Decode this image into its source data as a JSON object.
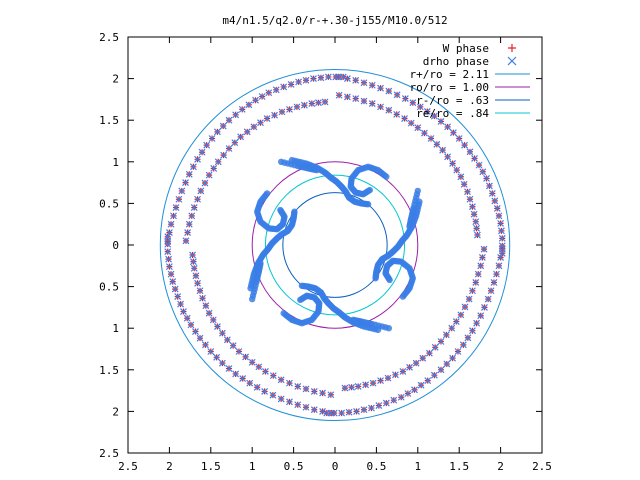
{
  "chart_data": {
    "type": "scatter",
    "title": "m4/n1.5/q2.0/r-+.30-j155/M10.0/512",
    "xlabel": "",
    "ylabel": "",
    "xlim": [
      -2.5,
      2.5
    ],
    "ylim": [
      -2.5,
      2.5
    ],
    "x_ticks": [
      -2.5,
      -2,
      -1.5,
      -1,
      -0.5,
      0,
      0.5,
      1,
      1.5,
      2,
      2.5
    ],
    "y_ticks": [
      2.5,
      2,
      1.5,
      1,
      0.5,
      0,
      -0.5,
      -1,
      -1.5,
      -2,
      -2.5
    ],
    "x_tick_labels": [
      "2.5",
      "2",
      "1.5",
      "1",
      "0.5",
      "0",
      "0.5",
      "1",
      "1.5",
      "2",
      "2.5"
    ],
    "y_tick_labels": [
      "2.5",
      "2",
      "1.5",
      "1",
      "0.5",
      "0",
      "0.5",
      "1",
      "1.5",
      "2",
      "2.5"
    ],
    "grid": false,
    "legend_position": "top-right",
    "circles": [
      {
        "name": "r+/ro = 2.11",
        "radius": 2.11,
        "color": "#1f8fd8"
      },
      {
        "name": "ro/ro = 1.00",
        "radius": 1.0,
        "color": "#9b1ea8"
      },
      {
        "name": "r-/ro = .63",
        "radius": 0.63,
        "color": "#0a5fc0"
      },
      {
        "name": "re/ro = .84",
        "radius": 0.84,
        "color": "#00c8d0"
      }
    ],
    "series": [
      {
        "name": "W phase",
        "marker": "+",
        "color": "#e8202a"
      },
      {
        "name": "drho phase",
        "marker": "x",
        "color": "#3a7ee6"
      }
    ],
    "pattern": {
      "arms": 4,
      "inner_bands": [
        {
          "phase": 0.0,
          "points": [
            [
              1.02,
              0.52
            ],
            [
              0.98,
              0.35
            ],
            [
              0.93,
              0.22
            ],
            [
              0.87,
              0.12
            ],
            [
              0.81,
              0.05
            ],
            [
              0.76,
              -0.02
            ],
            [
              0.7,
              -0.08
            ],
            [
              0.64,
              -0.13
            ],
            [
              0.57,
              -0.17
            ],
            [
              0.52,
              -0.24
            ],
            [
              0.5,
              -0.32
            ],
            [
              0.49,
              -0.4
            ]
          ]
        },
        {
          "phase": 90.0,
          "points": [
            [
              1.0,
              0.65
            ],
            [
              0.95,
              0.45
            ],
            [
              0.92,
              0.32
            ],
            [
              0.9,
              0.22
            ]
          ]
        }
      ],
      "hooks": [
        {
          "points": [
            [
              0.62,
              0.82
            ],
            [
              0.52,
              0.9
            ],
            [
              0.4,
              0.94
            ],
            [
              0.28,
              0.9
            ],
            [
              0.2,
              0.8
            ],
            [
              0.19,
              0.7
            ],
            [
              0.25,
              0.63
            ],
            [
              0.34,
              0.61
            ],
            [
              0.42,
              0.66
            ]
          ]
        }
      ],
      "outer_arms": [
        {
          "points": [
            [
              2.02,
              -0.05
            ],
            [
              1.98,
              -0.25
            ],
            [
              1.92,
              -0.45
            ],
            [
              1.85,
              -0.65
            ],
            [
              1.76,
              -0.85
            ],
            [
              1.66,
              -1.03
            ],
            [
              1.55,
              -1.2
            ],
            [
              1.42,
              -1.36
            ],
            [
              1.28,
              -1.5
            ],
            [
              1.12,
              -1.63
            ],
            [
              0.96,
              -1.74
            ],
            [
              0.8,
              -1.83
            ],
            [
              0.62,
              -1.9
            ],
            [
              0.44,
              -1.96
            ],
            [
              0.26,
              -2.0
            ],
            [
              0.08,
              -2.02
            ],
            [
              -0.1,
              -2.02
            ]
          ]
        },
        {
          "points": [
            [
              1.8,
              -0.05
            ],
            [
              1.76,
              -0.25
            ],
            [
              1.7,
              -0.45
            ],
            [
              1.62,
              -0.65
            ],
            [
              1.52,
              -0.84
            ],
            [
              1.41,
              -1.0
            ],
            [
              1.28,
              -1.16
            ],
            [
              1.14,
              -1.3
            ],
            [
              0.98,
              -1.42
            ],
            [
              0.82,
              -1.52
            ],
            [
              0.64,
              -1.6
            ],
            [
              0.46,
              -1.66
            ],
            [
              0.28,
              -1.7
            ],
            [
              0.12,
              -1.72
            ]
          ]
        }
      ]
    }
  }
}
